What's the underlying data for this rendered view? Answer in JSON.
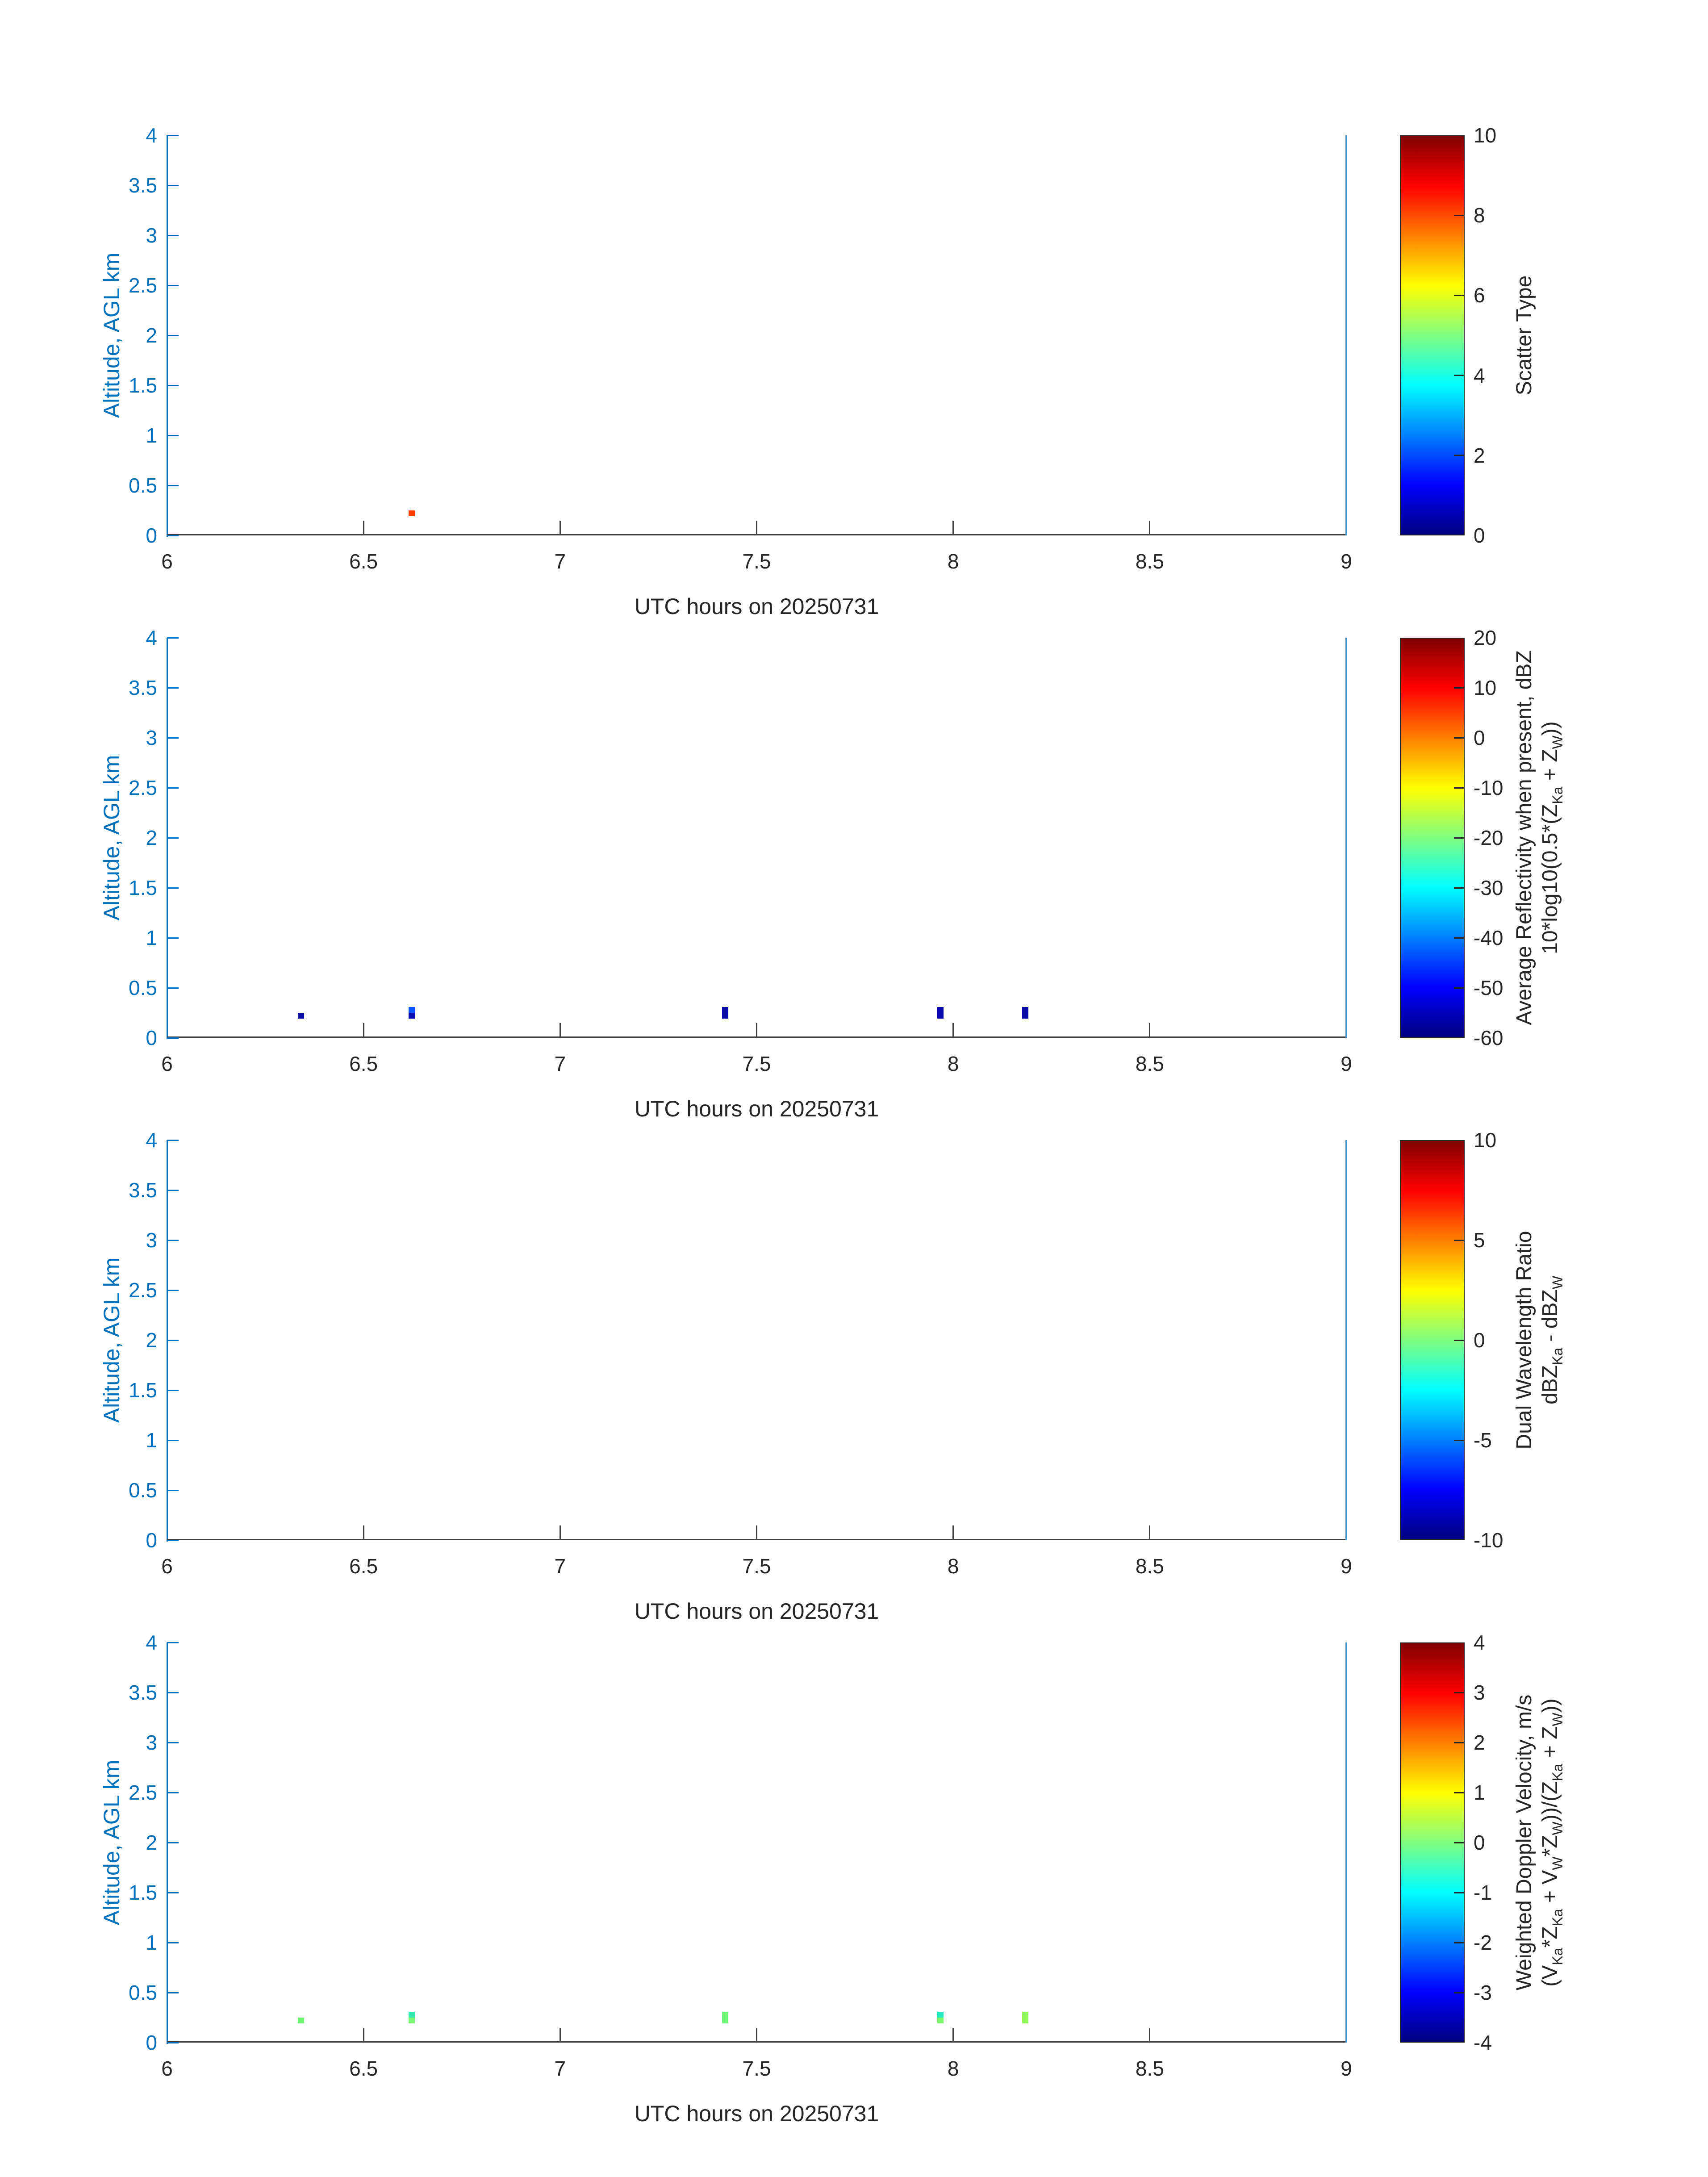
{
  "axes": {
    "x": {
      "min": 6,
      "max": 9,
      "label": "UTC hours on 20250731",
      "ticks": [
        {
          "v": 6,
          "label": "6"
        },
        {
          "v": 6.5,
          "label": "6.5"
        },
        {
          "v": 7,
          "label": "7"
        },
        {
          "v": 7.5,
          "label": "7.5"
        },
        {
          "v": 8,
          "label": "8"
        },
        {
          "v": 8.5,
          "label": "8.5"
        },
        {
          "v": 9,
          "label": "9"
        }
      ]
    },
    "y": {
      "min": 0,
      "max": 4,
      "label": "Altitude, AGL km",
      "ticks": [
        {
          "v": 4,
          "label": "4"
        },
        {
          "v": 3.5,
          "label": "3.5"
        },
        {
          "v": 3,
          "label": "3"
        },
        {
          "v": 2.5,
          "label": "2.5"
        },
        {
          "v": 2,
          "label": "2"
        },
        {
          "v": 1.5,
          "label": "1.5"
        },
        {
          "v": 1,
          "label": "1"
        },
        {
          "v": 0.5,
          "label": "0.5"
        },
        {
          "v": 0,
          "label": "0"
        }
      ]
    }
  },
  "colors": {
    "y_axis": "#0072bd",
    "x_axis": "#404040",
    "right_edge_line": "#4596cf",
    "dark_text": "#262626",
    "background": "#ffffff"
  },
  "chart_data": [
    {
      "type": "heatmap",
      "colormap": "jet",
      "title": "Scatter Type",
      "xlabel": "UTC hours on 20250731",
      "ylabel": "Altitude, AGL km",
      "xlim": [
        6,
        9
      ],
      "ylim": [
        0,
        4
      ],
      "grid": false,
      "colorbar": {
        "min": 0,
        "max": 10,
        "ticks": [
          {
            "v": 10,
            "label": "10"
          },
          {
            "v": 8,
            "label": "8"
          },
          {
            "v": 6,
            "label": "6"
          },
          {
            "v": 4,
            "label": "4"
          },
          {
            "v": 2,
            "label": "2"
          },
          {
            "v": 0,
            "label": "0"
          }
        ],
        "label_lines": [
          [
            {
              "t": "Scatter Type"
            }
          ]
        ]
      },
      "points": [
        {
          "x": 6.623,
          "alt": [
            0.19,
            0.25
          ],
          "color": "#fb3c03",
          "value_est": 8.4
        }
      ]
    },
    {
      "type": "heatmap",
      "colormap": "jet",
      "title": "Average Reflectivity when present, dBZ",
      "xlabel": "UTC hours on 20250731",
      "ylabel": "Altitude, AGL km",
      "xlim": [
        6,
        9
      ],
      "ylim": [
        0,
        4
      ],
      "grid": false,
      "colorbar": {
        "min": -60,
        "max": 20,
        "ticks": [
          {
            "v": 20,
            "label": "20"
          },
          {
            "v": 10,
            "label": "10"
          },
          {
            "v": 0,
            "label": "0"
          },
          {
            "v": -10,
            "label": "-10"
          },
          {
            "v": -20,
            "label": "-20"
          },
          {
            "v": -30,
            "label": "-30"
          },
          {
            "v": -40,
            "label": "-40"
          },
          {
            "v": -50,
            "label": "-50"
          },
          {
            "v": -60,
            "label": "-60"
          }
        ],
        "label_lines": [
          [
            {
              "t": "Average Reflectivity when present, dBZ"
            }
          ],
          [
            {
              "t": "10*log10(0.5*(Z"
            },
            {
              "t": "Ka",
              "sub": true
            },
            {
              "t": " + Z"
            },
            {
              "t": "W",
              "sub": true
            },
            {
              "t": "))"
            }
          ]
        ]
      },
      "points": [
        {
          "x": 6.341,
          "alt": [
            0.19,
            0.25
          ],
          "color": "#0d0da8",
          "value_est": -56
        },
        {
          "x": 6.623,
          "alt": [
            0.19,
            0.25
          ],
          "color": "#0a0db0",
          "value_est": -56
        },
        {
          "x": 6.623,
          "alt": [
            0.25,
            0.31
          ],
          "color": "#0855fa",
          "value_est": -45
        },
        {
          "x": 7.42,
          "alt": [
            0.19,
            0.25
          ],
          "color": "#0a0aa8",
          "value_est": -56
        },
        {
          "x": 7.42,
          "alt": [
            0.25,
            0.31
          ],
          "color": "#0a0aa8",
          "value_est": -56
        },
        {
          "x": 7.967,
          "alt": [
            0.19,
            0.25
          ],
          "color": "#0a0aa8",
          "value_est": -56
        },
        {
          "x": 7.967,
          "alt": [
            0.25,
            0.31
          ],
          "color": "#0a0aa8",
          "value_est": -56
        },
        {
          "x": 8.183,
          "alt": [
            0.19,
            0.25
          ],
          "color": "#0a0aa8",
          "value_est": -56
        },
        {
          "x": 8.183,
          "alt": [
            0.25,
            0.31
          ],
          "color": "#0a0aa8",
          "value_est": -56
        }
      ]
    },
    {
      "type": "heatmap",
      "colormap": "jet",
      "title": "Dual Wavelength Ratio",
      "xlabel": "UTC hours on 20250731",
      "ylabel": "Altitude, AGL km",
      "xlim": [
        6,
        9
      ],
      "ylim": [
        0,
        4
      ],
      "grid": false,
      "colorbar": {
        "min": -10,
        "max": 10,
        "ticks": [
          {
            "v": 10,
            "label": "10"
          },
          {
            "v": 5,
            "label": "5"
          },
          {
            "v": 0,
            "label": "0"
          },
          {
            "v": -5,
            "label": "-5"
          },
          {
            "v": -10,
            "label": "-10"
          }
        ],
        "label_lines": [
          [
            {
              "t": "Dual Wavelength Ratio"
            }
          ],
          [
            {
              "t": "dBZ"
            },
            {
              "t": "Ka",
              "sub": true
            },
            {
              "t": " - dBZ"
            },
            {
              "t": "W",
              "sub": true
            }
          ]
        ]
      },
      "points": []
    },
    {
      "type": "heatmap",
      "colormap": "jet",
      "title": "Weighted Doppler Velocity, m/s",
      "xlabel": "UTC hours on 20250731",
      "ylabel": "Altitude, AGL km",
      "xlim": [
        6,
        9
      ],
      "ylim": [
        0,
        4
      ],
      "grid": false,
      "colorbar": {
        "min": -4,
        "max": 4,
        "ticks": [
          {
            "v": 4,
            "label": "4"
          },
          {
            "v": 3,
            "label": "3"
          },
          {
            "v": 2,
            "label": "2"
          },
          {
            "v": 1,
            "label": "1"
          },
          {
            "v": 0,
            "label": "0"
          },
          {
            "v": -1,
            "label": "-1"
          },
          {
            "v": -2,
            "label": "-2"
          },
          {
            "v": -3,
            "label": "-3"
          },
          {
            "v": -4,
            "label": "-4"
          }
        ],
        "label_lines": [
          [
            {
              "t": "Weighted Doppler Velocity, m/s"
            }
          ],
          [
            {
              "t": "(V"
            },
            {
              "t": "Ka",
              "sub": true
            },
            {
              "t": "*Z"
            },
            {
              "t": "Ka",
              "sub": true
            },
            {
              "t": " + V"
            },
            {
              "t": "W",
              "sub": true
            },
            {
              "t": "*Z"
            },
            {
              "t": "W",
              "sub": true
            },
            {
              "t": "))/(Z"
            },
            {
              "t": "Ka",
              "sub": true
            },
            {
              "t": " + Z"
            },
            {
              "t": "W",
              "sub": true
            },
            {
              "t": "))"
            }
          ]
        ]
      },
      "points": [
        {
          "x": 6.341,
          "alt": [
            0.19,
            0.25
          ],
          "color": "#70f573",
          "value_est": 0.1
        },
        {
          "x": 6.623,
          "alt": [
            0.19,
            0.25
          ],
          "color": "#7bf973",
          "value_est": 0.2
        },
        {
          "x": 6.623,
          "alt": [
            0.25,
            0.31
          ],
          "color": "#38e8b0",
          "value_est": -0.5
        },
        {
          "x": 7.42,
          "alt": [
            0.19,
            0.25
          ],
          "color": "#70fa78",
          "value_est": 0.1
        },
        {
          "x": 7.42,
          "alt": [
            0.25,
            0.31
          ],
          "color": "#70fa78",
          "value_est": 0.1
        },
        {
          "x": 7.967,
          "alt": [
            0.19,
            0.25
          ],
          "color": "#7cfa6e",
          "value_est": 0.1
        },
        {
          "x": 7.967,
          "alt": [
            0.25,
            0.31
          ],
          "color": "#2be8c3",
          "value_est": -0.6
        },
        {
          "x": 8.183,
          "alt": [
            0.19,
            0.25
          ],
          "color": "#93f85c",
          "value_est": 0.3
        },
        {
          "x": 8.183,
          "alt": [
            0.25,
            0.31
          ],
          "color": "#93f85c",
          "value_est": 0.3
        }
      ]
    }
  ]
}
